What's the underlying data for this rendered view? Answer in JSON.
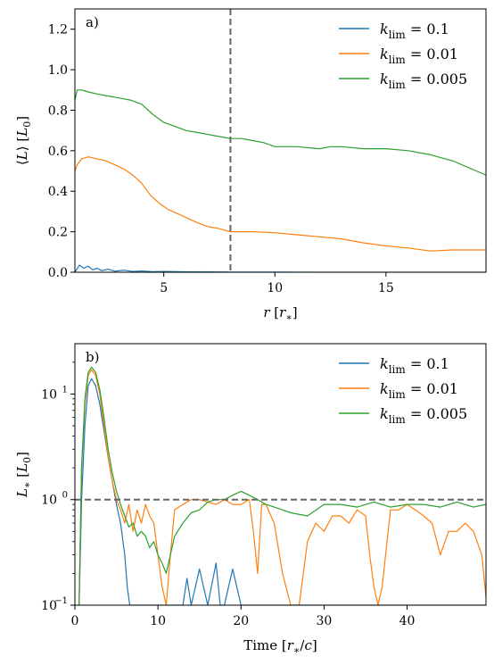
{
  "chart_data": [
    {
      "type": "line",
      "panel_label": "a)",
      "xlabel": "r [r_*]",
      "ylabel": "⟨L⟩ [L_0]",
      "xlim": [
        1,
        19.5
      ],
      "ylim": [
        0,
        1.3
      ],
      "yscale": "linear",
      "xticks": [
        5,
        10,
        15
      ],
      "xtick_labels": [
        "5",
        "10",
        "15"
      ],
      "yticks": [
        0.0,
        0.2,
        0.4,
        0.6,
        0.8,
        1.0,
        1.2
      ],
      "ytick_labels": [
        "0.0",
        "0.2",
        "0.4",
        "0.6",
        "0.8",
        "1.0",
        "1.2"
      ],
      "reference_line": {
        "orientation": "vertical",
        "value": 8,
        "style": "dashed"
      },
      "legend_position": "top-right",
      "series": [
        {
          "name": "k_lim = 0.1",
          "color": "#1f77b4",
          "x": [
            1.0,
            1.2,
            1.4,
            1.6,
            1.8,
            2.0,
            2.2,
            2.5,
            2.8,
            3.2,
            3.6,
            4.0,
            4.5,
            5.0,
            6.0,
            8.0,
            10.0,
            12.0,
            15.0,
            19.5
          ],
          "y": [
            0.0,
            0.035,
            0.02,
            0.03,
            0.012,
            0.02,
            0.008,
            0.015,
            0.005,
            0.01,
            0.004,
            0.006,
            0.003,
            0.004,
            0.002,
            0.001,
            0.001,
            0.0,
            0.0,
            0.0
          ]
        },
        {
          "name": "k_lim = 0.01",
          "color": "#ff7f0e",
          "x": [
            1.0,
            1.1,
            1.3,
            1.6,
            2.0,
            2.4,
            2.8,
            3.2,
            3.6,
            4.0,
            4.4,
            4.8,
            5.2,
            5.6,
            6.0,
            6.5,
            7.0,
            7.5,
            8.0,
            8.5,
            9.0,
            10.0,
            11.0,
            12.0,
            13.0,
            14.0,
            15.0,
            16.0,
            17.0,
            18.0,
            19.5
          ],
          "y": [
            0.5,
            0.53,
            0.56,
            0.57,
            0.56,
            0.55,
            0.53,
            0.51,
            0.48,
            0.44,
            0.38,
            0.34,
            0.31,
            0.29,
            0.27,
            0.245,
            0.225,
            0.215,
            0.2,
            0.2,
            0.2,
            0.195,
            0.185,
            0.175,
            0.165,
            0.145,
            0.13,
            0.12,
            0.105,
            0.11,
            0.11
          ]
        },
        {
          "name": "k_lim = 0.005",
          "color": "#2ca02c",
          "x": [
            1.0,
            1.1,
            1.3,
            1.6,
            2.0,
            2.5,
            3.0,
            3.5,
            4.0,
            4.5,
            5.0,
            5.5,
            6.0,
            6.5,
            7.0,
            7.5,
            8.0,
            8.5,
            9.0,
            9.5,
            10.0,
            11.0,
            12.0,
            12.5,
            13.0,
            14.0,
            15.0,
            16.0,
            17.0,
            18.0,
            19.5
          ],
          "y": [
            0.85,
            0.9,
            0.9,
            0.89,
            0.88,
            0.87,
            0.86,
            0.85,
            0.83,
            0.78,
            0.74,
            0.72,
            0.7,
            0.69,
            0.68,
            0.67,
            0.66,
            0.66,
            0.65,
            0.64,
            0.62,
            0.62,
            0.61,
            0.62,
            0.62,
            0.61,
            0.61,
            0.6,
            0.58,
            0.55,
            0.48
          ]
        }
      ]
    },
    {
      "type": "line",
      "panel_label": "b)",
      "xlabel": "Time [r_*/c]",
      "ylabel": "L_* [L_0]",
      "xlim": [
        0,
        49.5
      ],
      "ylim": [
        0.1,
        30
      ],
      "yscale": "log",
      "xticks": [
        0,
        10,
        20,
        30,
        40
      ],
      "xtick_labels": [
        "0",
        "10",
        "20",
        "30",
        "40"
      ],
      "yticks": [
        0.1,
        1,
        10
      ],
      "ytick_labels": [
        "10",
        "10",
        "10"
      ],
      "ytick_exponents": [
        "−1",
        "0",
        "1"
      ],
      "reference_line": {
        "orientation": "horizontal",
        "value": 1,
        "style": "dashed"
      },
      "legend_position": "top-right",
      "series": [
        {
          "name": "k_lim = 0.1",
          "color": "#1f77b4",
          "x": [
            0.5,
            0.8,
            1.2,
            1.6,
            2.0,
            2.5,
            3.0,
            3.5,
            4.0,
            4.5,
            5.0,
            5.5,
            6.0,
            6.3,
            6.6,
            7.0,
            9.0,
            11.0,
            13.0,
            13.5,
            14.0,
            15.0,
            16.0,
            17.0,
            17.5,
            18.0,
            19.0,
            20.0,
            22.0,
            26.0,
            30.0,
            36.0,
            40.0,
            44.0,
            48.0,
            49.5
          ],
          "y": [
            0.1,
            1.0,
            5.0,
            12.0,
            14.0,
            12.0,
            8.0,
            4.5,
            2.5,
            1.5,
            0.9,
            0.6,
            0.3,
            0.15,
            0.1,
            0.1,
            0.1,
            0.1,
            0.1,
            0.18,
            0.1,
            0.22,
            0.1,
            0.25,
            0.1,
            0.1,
            0.22,
            0.1,
            0.1,
            0.1,
            0.1,
            0.1,
            0.1,
            0.1,
            0.1,
            0.1
          ]
        },
        {
          "name": "k_lim = 0.01",
          "color": "#ff7f0e",
          "x": [
            0.5,
            0.8,
            1.2,
            1.6,
            2.0,
            2.5,
            3.0,
            3.5,
            4.0,
            4.5,
            5.0,
            5.5,
            6.0,
            6.5,
            7.0,
            7.5,
            8.0,
            8.5,
            9.0,
            9.5,
            10.0,
            10.5,
            11.0,
            11.5,
            12.0,
            13.0,
            14.0,
            15.0,
            16.0,
            17.0,
            18.0,
            19.0,
            20.0,
            21.0,
            21.5,
            22.0,
            22.5,
            23.0,
            24.0,
            25.0,
            26.0,
            27.0,
            28.0,
            29.0,
            30.0,
            31.0,
            32.0,
            33.0,
            34.0,
            35.0,
            35.5,
            36.0,
            36.5,
            37.0,
            38.0,
            39.0,
            40.0,
            41.0,
            42.0,
            43.0,
            44.0,
            45.0,
            46.0,
            47.0,
            48.0,
            49.0,
            49.5
          ],
          "y": [
            0.1,
            2.0,
            8.0,
            15.0,
            17.0,
            15.0,
            10.0,
            5.0,
            2.5,
            1.5,
            1.0,
            0.8,
            0.6,
            0.9,
            0.5,
            0.8,
            0.6,
            0.9,
            0.7,
            0.6,
            0.3,
            0.15,
            0.1,
            0.3,
            0.8,
            0.9,
            1.0,
            1.0,
            0.95,
            0.9,
            1.0,
            0.9,
            0.9,
            1.0,
            0.5,
            0.2,
            0.9,
            0.9,
            0.6,
            0.2,
            0.1,
            0.1,
            0.4,
            0.6,
            0.5,
            0.7,
            0.7,
            0.6,
            0.8,
            0.7,
            0.3,
            0.15,
            0.1,
            0.15,
            0.8,
            0.8,
            0.9,
            0.8,
            0.7,
            0.6,
            0.3,
            0.5,
            0.5,
            0.6,
            0.5,
            0.3,
            0.12
          ]
        },
        {
          "name": "k_lim = 0.005",
          "color": "#2ca02c",
          "x": [
            0.5,
            0.8,
            1.2,
            1.6,
            2.0,
            2.5,
            3.0,
            3.5,
            4.0,
            4.5,
            5.0,
            5.5,
            6.0,
            6.5,
            7.0,
            7.5,
            8.0,
            8.5,
            9.0,
            9.5,
            10.0,
            10.5,
            11.0,
            12.0,
            13.0,
            14.0,
            15.0,
            16.0,
            17.0,
            18.0,
            19.0,
            20.0,
            21.0,
            22.0,
            23.0,
            24.0,
            25.0,
            26.0,
            28.0,
            30.0,
            32.0,
            34.0,
            36.0,
            38.0,
            40.0,
            42.0,
            44.0,
            46.0,
            48.0,
            49.5
          ],
          "y": [
            0.1,
            2.0,
            9.0,
            16.0,
            18.0,
            16.0,
            11.0,
            6.0,
            3.0,
            1.8,
            1.2,
            0.9,
            0.7,
            0.55,
            0.6,
            0.45,
            0.5,
            0.45,
            0.35,
            0.4,
            0.3,
            0.25,
            0.2,
            0.45,
            0.6,
            0.75,
            0.8,
            0.95,
            1.0,
            1.0,
            1.1,
            1.2,
            1.1,
            1.0,
            0.9,
            0.85,
            0.8,
            0.75,
            0.7,
            0.9,
            0.9,
            0.85,
            0.95,
            0.85,
            0.9,
            0.9,
            0.85,
            0.95,
            0.85,
            0.9
          ]
        }
      ]
    }
  ]
}
